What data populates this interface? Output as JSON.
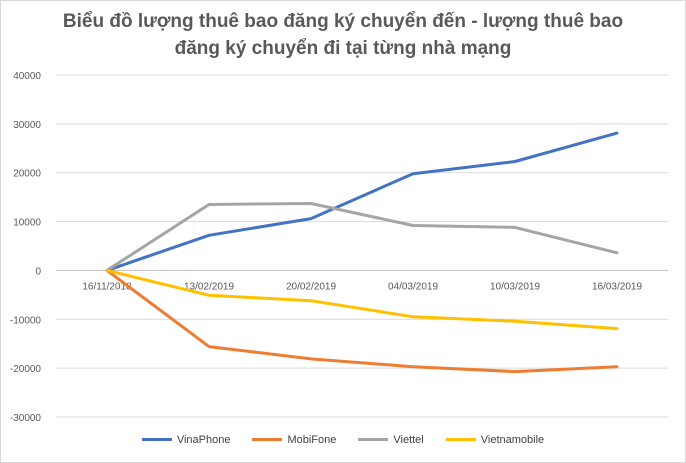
{
  "title": {
    "line1": "Biểu đồ lượng thuê bao đăng ký chuyển đến - lượng thuê bao",
    "line2": "đăng ký chuyển đi tại từng nhà mạng"
  },
  "chart_data": {
    "type": "line",
    "title": "Biểu đồ lượng thuê bao đăng ký chuyển đến - lượng thuê bao đăng ký chuyển đi tại từng nhà mạng",
    "categories": [
      "16/11/2018",
      "13/02/2019",
      "20/02/2019",
      "04/03/2019",
      "10/03/2019",
      "16/03/2019"
    ],
    "yticks": [
      "40000",
      "30000",
      "20000",
      "10000",
      "0",
      "-10000",
      "-20000",
      "-30000"
    ],
    "ylim": [
      -30000,
      40000
    ],
    "grid": true,
    "legend_position": "bottom",
    "series": [
      {
        "name": "VinaPhone",
        "color": "#4472C4",
        "values": [
          0,
          7200,
          10600,
          19800,
          22300,
          28100
        ]
      },
      {
        "name": "MobiFone",
        "color": "#ED7D31",
        "values": [
          0,
          -15600,
          -18100,
          -19700,
          -20700,
          -19700
        ]
      },
      {
        "name": "Viettel",
        "color": "#A5A5A5",
        "values": [
          0,
          13500,
          13700,
          9200,
          8800,
          3600
        ]
      },
      {
        "name": "Vietnamobile",
        "color": "#FFC000",
        "values": [
          0,
          -5100,
          -6200,
          -9500,
          -10400,
          -11900
        ]
      }
    ]
  }
}
